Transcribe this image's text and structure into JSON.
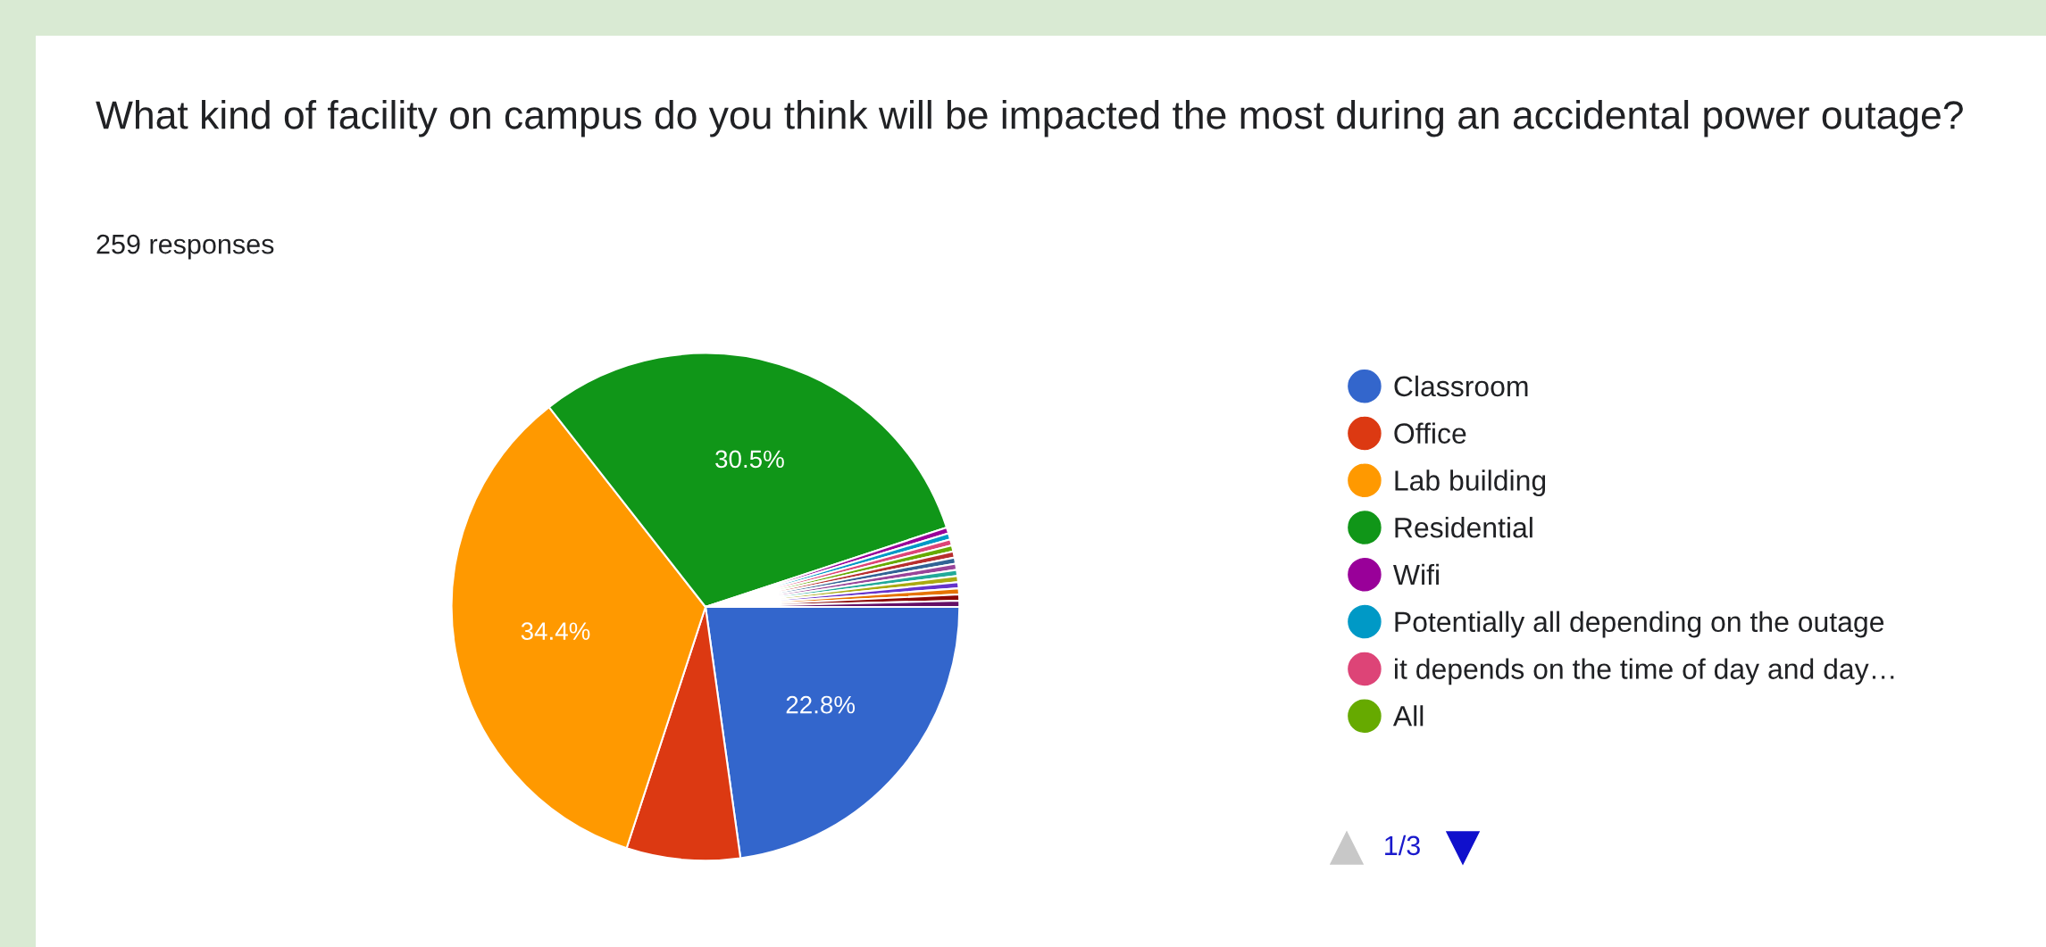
{
  "chart_data": {
    "type": "pie",
    "title": "What kind of facility on campus do you think will be impacted the most during an accidental power outage?",
    "subtitle": "259 responses",
    "categories": [
      "Classroom",
      "Office",
      "Lab building",
      "Residential",
      "Wifi",
      "Potentially all depending on the outage",
      "it depends on the time of day and day…",
      "All",
      null,
      null,
      null,
      null,
      null,
      null,
      null,
      null,
      null
    ],
    "values": [
      22.8,
      7.23,
      34.4,
      30.5,
      0.39,
      0.39,
      0.39,
      0.39,
      0.39,
      0.39,
      0.39,
      0.39,
      0.39,
      0.39,
      0.39,
      0.39,
      0.39
    ],
    "colors": [
      "#3366cc",
      "#dc3912",
      "#ff9900",
      "#109618",
      "#990099",
      "#0099c6",
      "#dd4477",
      "#66aa00",
      "#b82e2e",
      "#316395",
      "#994499",
      "#22aa99",
      "#aaaa11",
      "#6633cc",
      "#e67300",
      "#8b0707",
      "#651067"
    ],
    "value_labels": [
      "22.8%",
      null,
      "34.4%",
      "30.5%",
      null,
      null,
      null,
      null,
      null,
      null,
      null,
      null,
      null,
      null,
      null,
      null,
      null
    ],
    "legend": "right",
    "annotations": [
      "1/3"
    ]
  }
}
